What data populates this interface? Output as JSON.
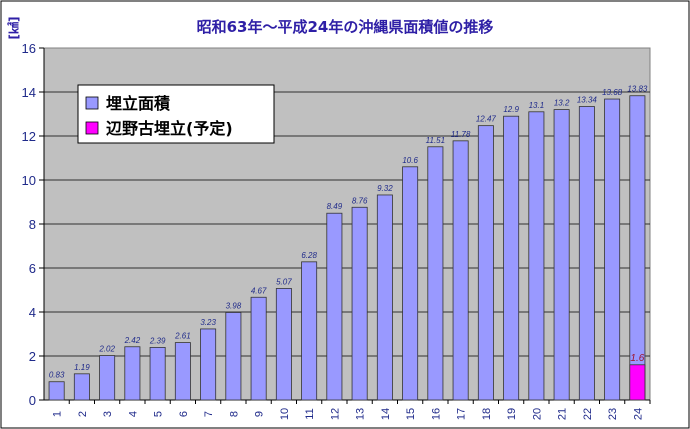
{
  "chart_data": {
    "type": "bar",
    "title": "昭和63年～平成24年の沖縄県面積値の推移",
    "unit_label": "[㎢]",
    "categories": [
      "1",
      "2",
      "3",
      "4",
      "5",
      "6",
      "7",
      "8",
      "9",
      "10",
      "11",
      "12",
      "13",
      "14",
      "15",
      "16",
      "17",
      "18",
      "19",
      "20",
      "21",
      "22",
      "23",
      "24"
    ],
    "ylim": [
      0,
      16
    ],
    "yticks": [
      0,
      2,
      4,
      6,
      8,
      10,
      12,
      14,
      16
    ],
    "grid": true,
    "legend_position": "top-left",
    "series": [
      {
        "name": "埋立面積",
        "color": "#9999ff",
        "values": [
          0.83,
          1.19,
          2.02,
          2.42,
          2.39,
          2.61,
          3.23,
          3.98,
          4.67,
          5.07,
          6.28,
          8.49,
          8.76,
          9.32,
          10.6,
          11.51,
          11.78,
          12.47,
          12.9,
          13.1,
          13.2,
          13.34,
          13.68,
          13.83
        ],
        "labels": [
          "0.83",
          "1.19",
          "2.02",
          "2.42",
          "2.39",
          "2.61",
          "3.23",
          "3.98",
          "4.67",
          "5.07",
          "6.28",
          "8.49",
          "8.76",
          "9.32",
          "10.6",
          "11.51",
          "11.78",
          "12.47",
          "12.9",
          "13.1",
          "13.2",
          "13.34",
          "13.68",
          "13.83"
        ]
      },
      {
        "name": "辺野古埋立(予定)",
        "color": "#ff00ff",
        "values": [
          null,
          null,
          null,
          null,
          null,
          null,
          null,
          null,
          null,
          null,
          null,
          null,
          null,
          null,
          null,
          null,
          null,
          null,
          null,
          null,
          null,
          null,
          null,
          1.6
        ],
        "labels": [
          "",
          "",
          "",
          "",
          "",
          "",
          "",
          "",
          "",
          "",
          "",
          "",
          "",
          "",
          "",
          "",
          "",
          "",
          "",
          "",
          "",
          "",
          "",
          "1.6"
        ]
      }
    ]
  }
}
